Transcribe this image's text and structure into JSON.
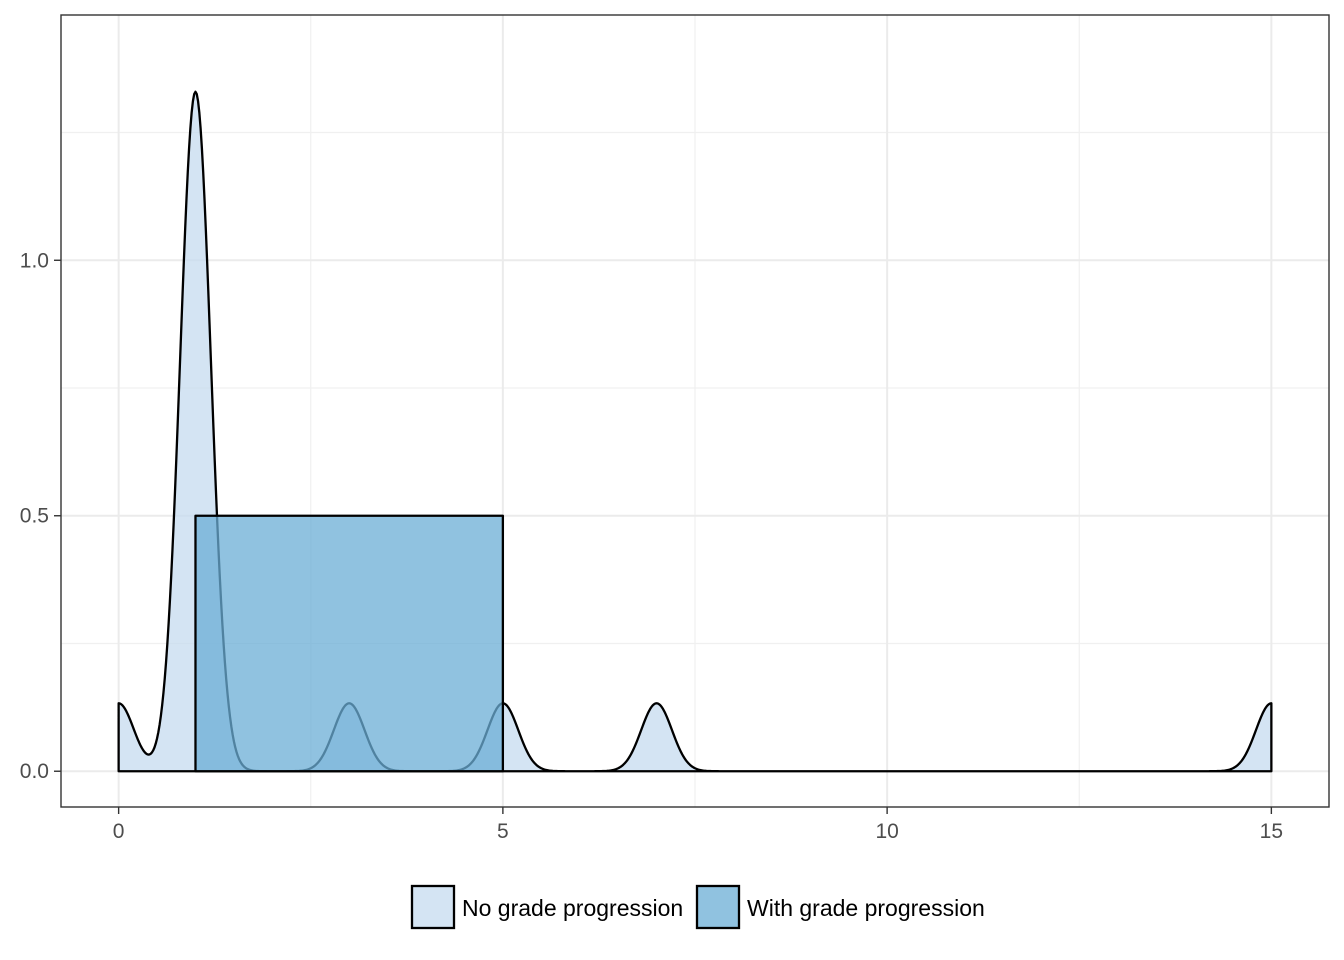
{
  "chart_data": {
    "type": "area",
    "title": "",
    "xlabel": "",
    "ylabel": "",
    "xlim": [
      -0.75,
      15.75
    ],
    "ylim": [
      -0.07,
      1.48
    ],
    "x_ticks": [
      0,
      5,
      10,
      15
    ],
    "x_tick_labels": [
      "0",
      "5",
      "10",
      "15"
    ],
    "y_ticks": [
      0.0,
      0.5,
      1.0
    ],
    "y_tick_labels": [
      "0.0",
      "0.5",
      "1.0"
    ],
    "grid": true,
    "legend_position": "bottom",
    "series": [
      {
        "name": "No grade progression",
        "kind": "density",
        "x_range": [
          0,
          15
        ],
        "observations": [
          0,
          1,
          1,
          1,
          1,
          1,
          1,
          1,
          1,
          1,
          1,
          3,
          5,
          7,
          15
        ],
        "bandwidth": 0.2,
        "fill": "#c6dbef",
        "fill_opacity": 0.75,
        "stroke": "#000000"
      },
      {
        "name": "With grade progression",
        "kind": "uniform",
        "x_range": [
          1,
          5
        ],
        "density": 0.5,
        "fill": "#6baed6",
        "fill_opacity": 0.75,
        "stroke": "#000000"
      }
    ]
  }
}
